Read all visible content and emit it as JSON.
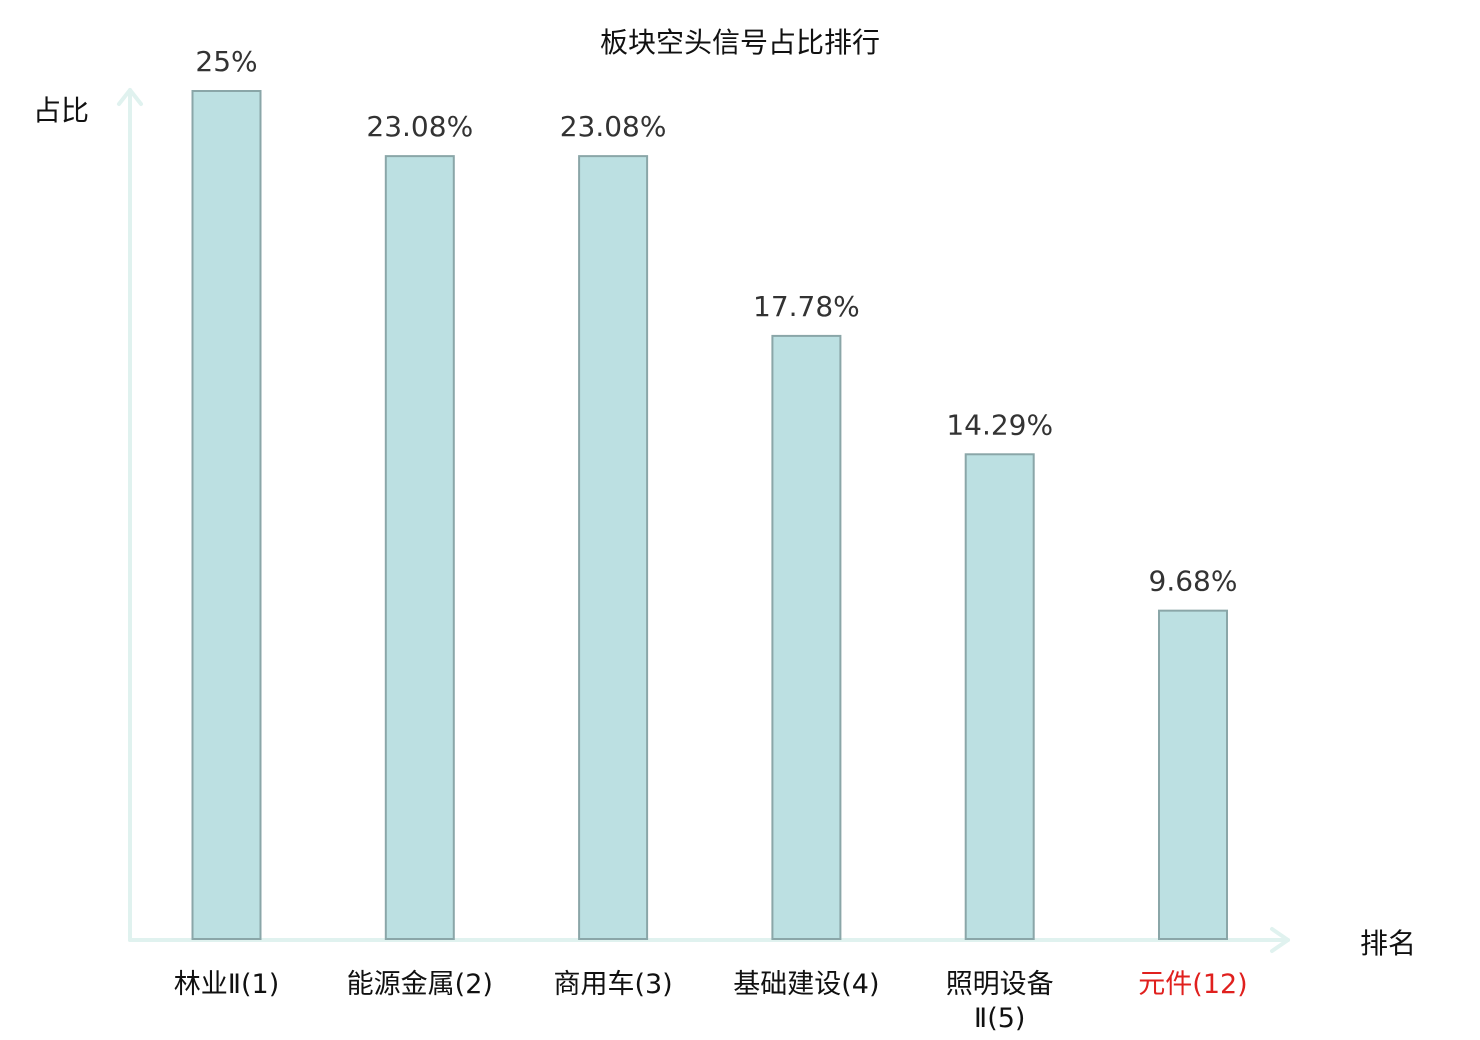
{
  "chart_data": {
    "type": "bar",
    "title": "板块空头信号占比排行",
    "ylabel": "占比",
    "xlabel": "排名",
    "categories": [
      [
        "林业Ⅱ(1)"
      ],
      [
        "能源金属(2)"
      ],
      [
        "商用车(3)"
      ],
      [
        "基础建设(4)"
      ],
      [
        "照明设备",
        "Ⅱ(5)"
      ],
      [
        "元件(12)"
      ]
    ],
    "values": [
      25,
      23.08,
      23.08,
      17.78,
      14.29,
      9.68
    ],
    "value_labels": [
      "25%",
      "23.08%",
      "23.08%",
      "17.78%",
      "14.29%",
      "9.68%"
    ],
    "highlight_index": 5,
    "ylim": [
      0,
      25
    ],
    "grid": false,
    "colors": {
      "bar_fill": "#bce0e2",
      "bar_stroke": "#8aa6a8",
      "axis": "#e0f2ef",
      "label": "#111111",
      "highlight_label": "#e0201e",
      "value_label": "#333333"
    }
  }
}
